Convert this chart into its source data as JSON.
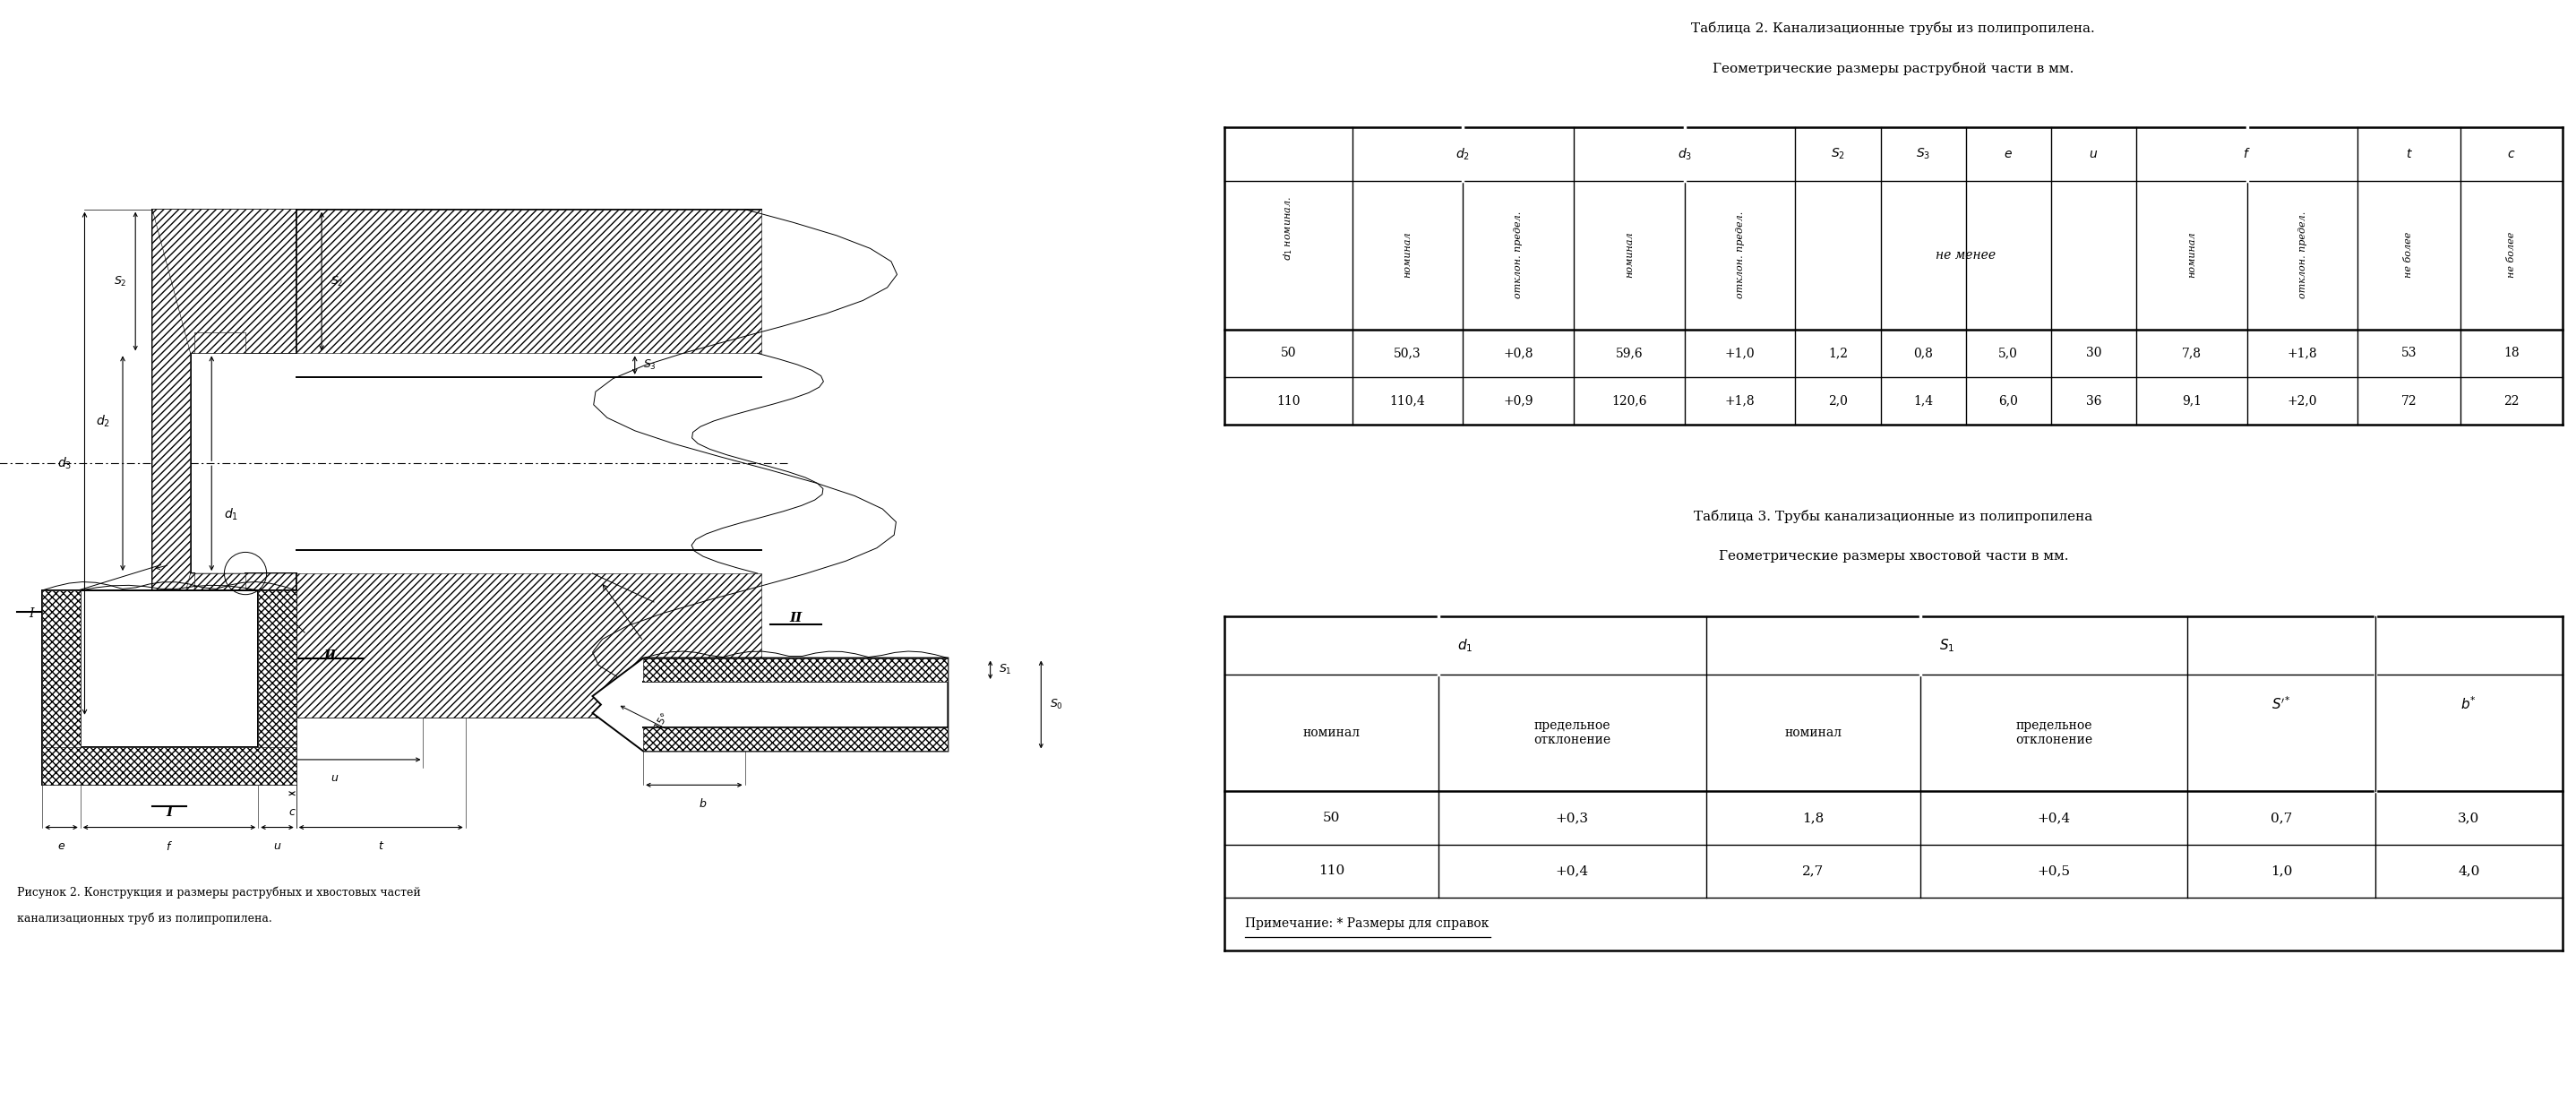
{
  "title_table2_line1": "Таблица 2. Канализационные трубы из полипропилена.",
  "title_table2_line2": "Геометрические размеры раструбной части в мм.",
  "title_table3_line1": "Таблица 3. Трубы канализационные из полипропилена",
  "title_table3_line2": "Геометрические размеры хвостовой части в мм.",
  "caption_line1": "Рисунок 2. Конструкция и размеры раструбных и хвостовых частей",
  "caption_line2": "канализационных труб из полипропилена.",
  "note": "Примечание: * Размеры для справок",
  "table2_data": [
    [
      "50",
      "50,3",
      "+0,8",
      "59,6",
      "+1,0",
      "1,2",
      "0,8",
      "5,0",
      "30",
      "7,8",
      "+1,8",
      "53",
      "18"
    ],
    [
      "110",
      "110,4",
      "+0,9",
      "120,6",
      "+1,8",
      "2,0",
      "1,4",
      "6,0",
      "36",
      "9,1",
      "+2,0",
      "72",
      "22"
    ]
  ],
  "table3_data": [
    [
      "50",
      "+0,3",
      "1,8",
      "+0,4",
      "0,7",
      "3,0"
    ],
    [
      "110",
      "+0,4",
      "2,7",
      "+0,5",
      "1,0",
      "4,0"
    ]
  ]
}
